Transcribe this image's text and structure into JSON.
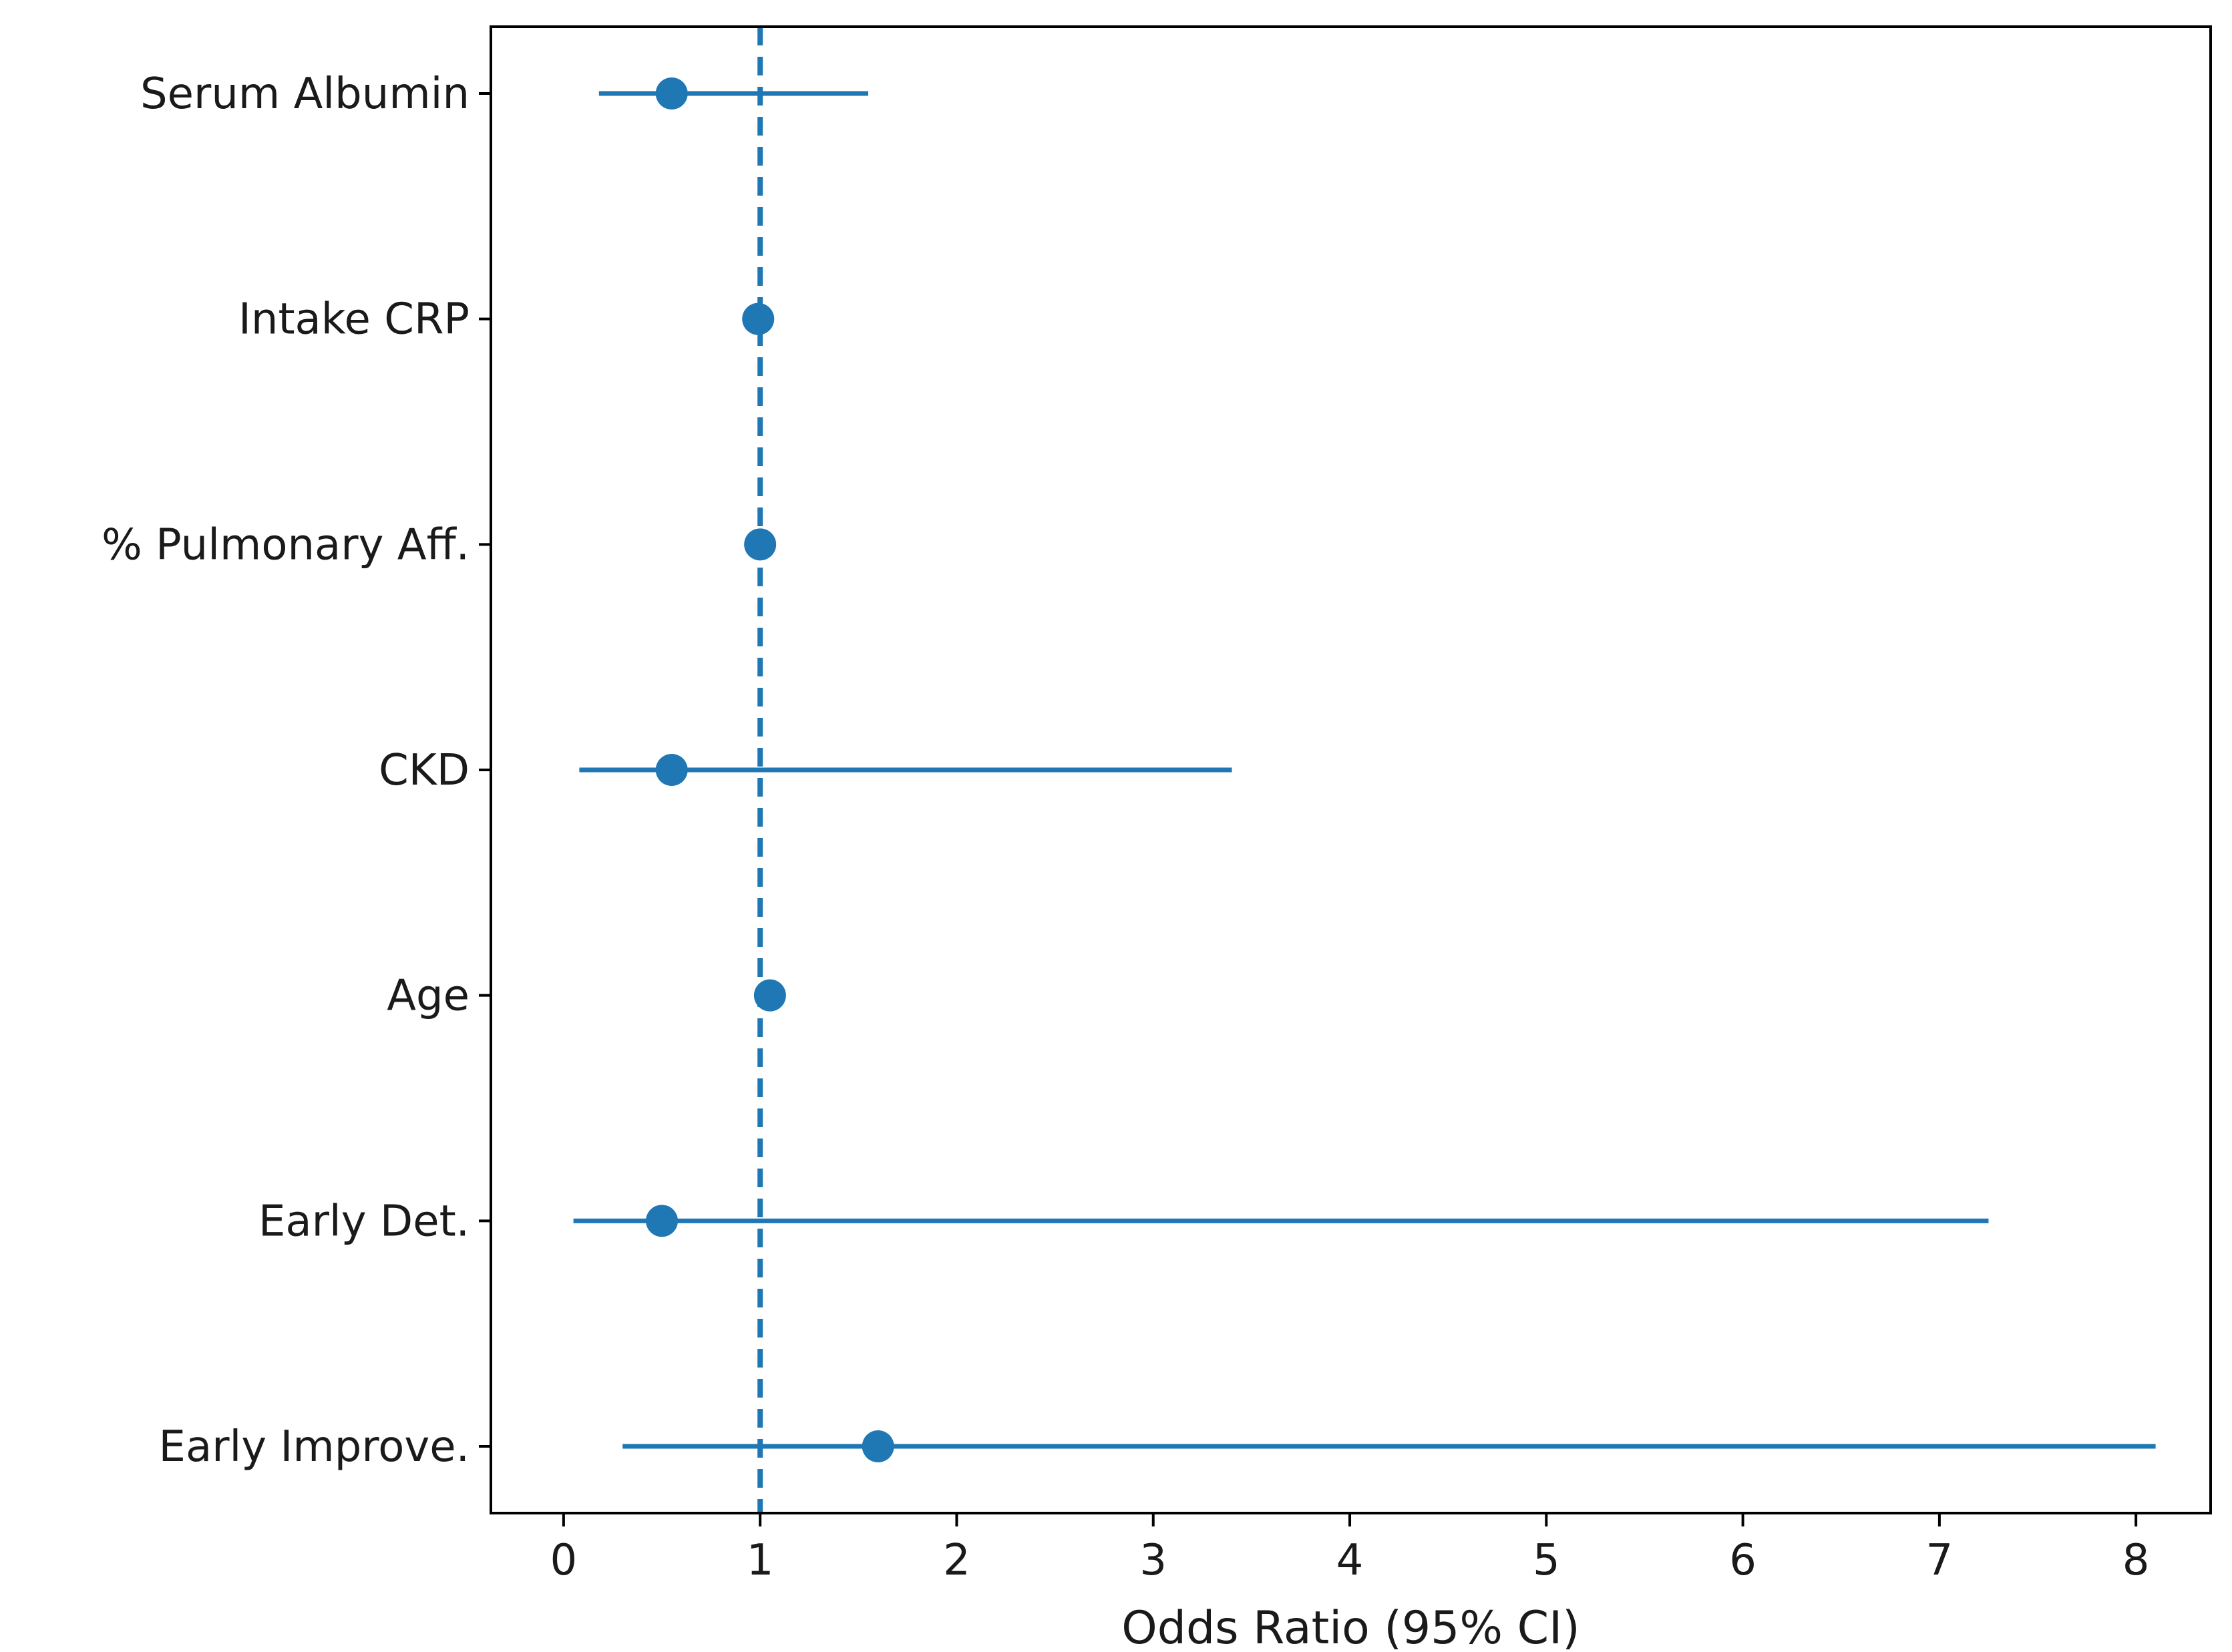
{
  "figure": {
    "title": "",
    "background": "#ffffff"
  },
  "chart_data": {
    "type": "scatter",
    "subtype": "forest-plot",
    "title": "",
    "xlabel": "Odds Ratio (95% CI)",
    "ylabel": "",
    "categories": [
      "Serum Albumin",
      "Intake CRP",
      "% Pulmonary Aff.",
      "CKD",
      "Age",
      "Early Det.",
      "Early Improve."
    ],
    "odds_ratios": [
      0.55,
      0.99,
      1.0,
      0.55,
      1.05,
      0.5,
      1.6
    ],
    "ci_low": [
      0.18,
      0.97,
      0.97,
      0.08,
      0.99,
      0.05,
      0.3
    ],
    "ci_high": [
      1.55,
      1.02,
      1.04,
      3.4,
      1.12,
      7.25,
      8.1
    ],
    "x_ticks": [
      0,
      1,
      2,
      3,
      4,
      5,
      6,
      7,
      8
    ],
    "xlim": [
      -0.37,
      8.38
    ],
    "reference_line_x": 1,
    "grid": false,
    "legend": "none",
    "marker_color": "#1f77b4",
    "reference_line_color": "#1f77b4",
    "axis_color": "#000000",
    "text_color": "#1a1a1a"
  }
}
